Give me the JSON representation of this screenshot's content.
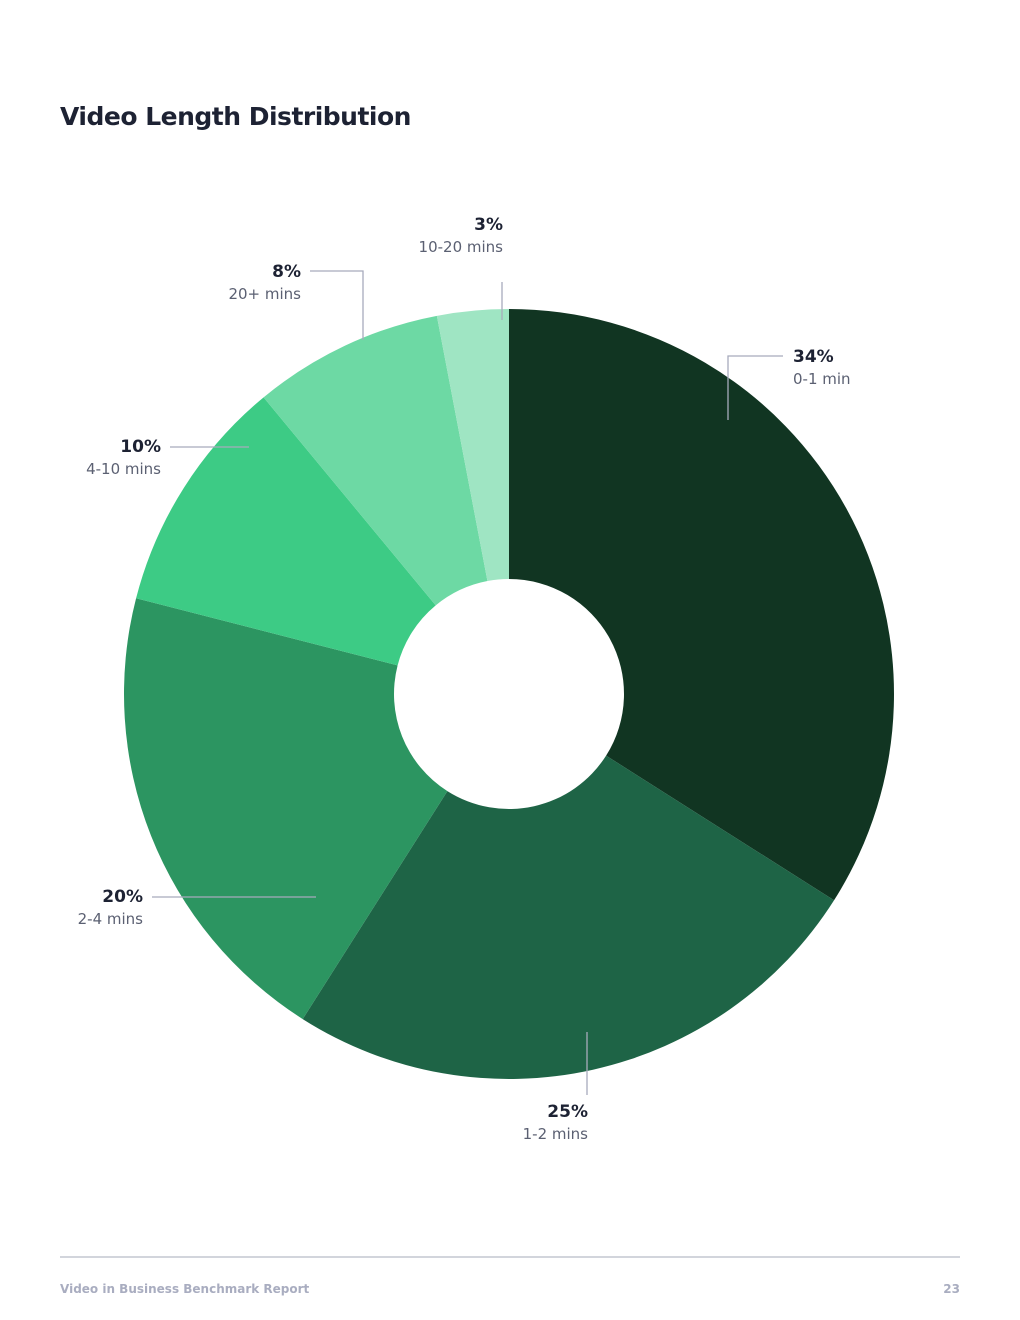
{
  "chart_data": {
    "type": "pie",
    "title": "Video Length Distribution",
    "categories": [
      "0-1 min",
      "1-2 mins",
      "2-4 mins",
      "4-10 mins",
      "20+ mins",
      "10-20 mins"
    ],
    "values": [
      34,
      25,
      20,
      10,
      8,
      3
    ],
    "value_labels": [
      "34%",
      "25%",
      "20%",
      "10%",
      "8%",
      "3%"
    ],
    "colors": [
      "#113522",
      "#1e6446",
      "#2c9561",
      "#3dcb85",
      "#6dd9a4",
      "#9fe5c3"
    ],
    "donut": true
  },
  "footer": {
    "text": "Video in Business Benchmark Report",
    "page": 23
  }
}
